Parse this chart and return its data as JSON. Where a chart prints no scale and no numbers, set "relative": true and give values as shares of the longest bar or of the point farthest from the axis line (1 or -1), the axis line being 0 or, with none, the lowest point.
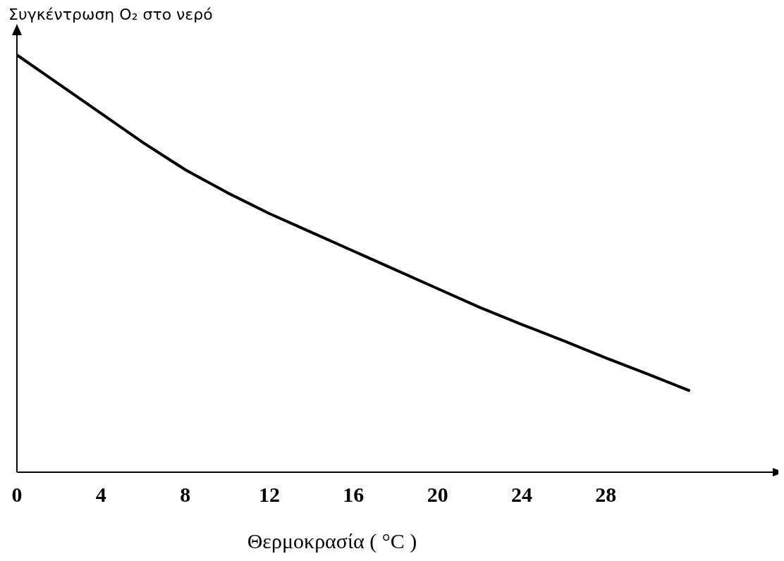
{
  "chart_data": {
    "type": "line",
    "relative": true,
    "ylabel": "Συγκέντρωση O₂ στο νερό",
    "xlabel": "Θερμοκρασία ( °C )",
    "x": [
      0,
      2,
      4,
      6,
      8,
      10,
      12,
      14,
      16,
      18,
      20,
      22,
      24,
      26,
      28,
      30,
      32
    ],
    "values": [
      1,
      0.93,
      0.86,
      0.79,
      0.725,
      0.67,
      0.62,
      0.575,
      0.53,
      0.485,
      0.44,
      0.395,
      0.354,
      0.315,
      0.274,
      0.235,
      0.195
    ],
    "color": "#000000",
    "xlim": [
      0,
      36
    ],
    "xticks": [
      0,
      4,
      8,
      12,
      16,
      20,
      24,
      28
    ],
    "grid": false,
    "marker": "none",
    "line_style": "solid"
  }
}
